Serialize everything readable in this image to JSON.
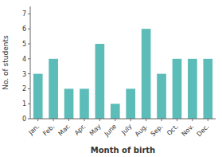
{
  "chart_data": {
    "type": "bar",
    "categories": [
      "Jan.",
      "Feb.",
      "Mar.",
      "Apr.",
      "May",
      "June",
      "July",
      "Aug.",
      "Sep.",
      "Oct.",
      "Nov.",
      "Dec."
    ],
    "values": [
      3,
      4,
      2,
      2,
      5,
      1,
      2,
      6,
      3,
      4,
      4,
      4
    ],
    "color": "#5bbcb8",
    "xlabel": "Month of birth",
    "ylabel": "No. of students",
    "ylim": [
      0,
      7.5
    ],
    "yticks": [
      0,
      1,
      2,
      3,
      4,
      5,
      6,
      7
    ],
    "grid": false
  }
}
